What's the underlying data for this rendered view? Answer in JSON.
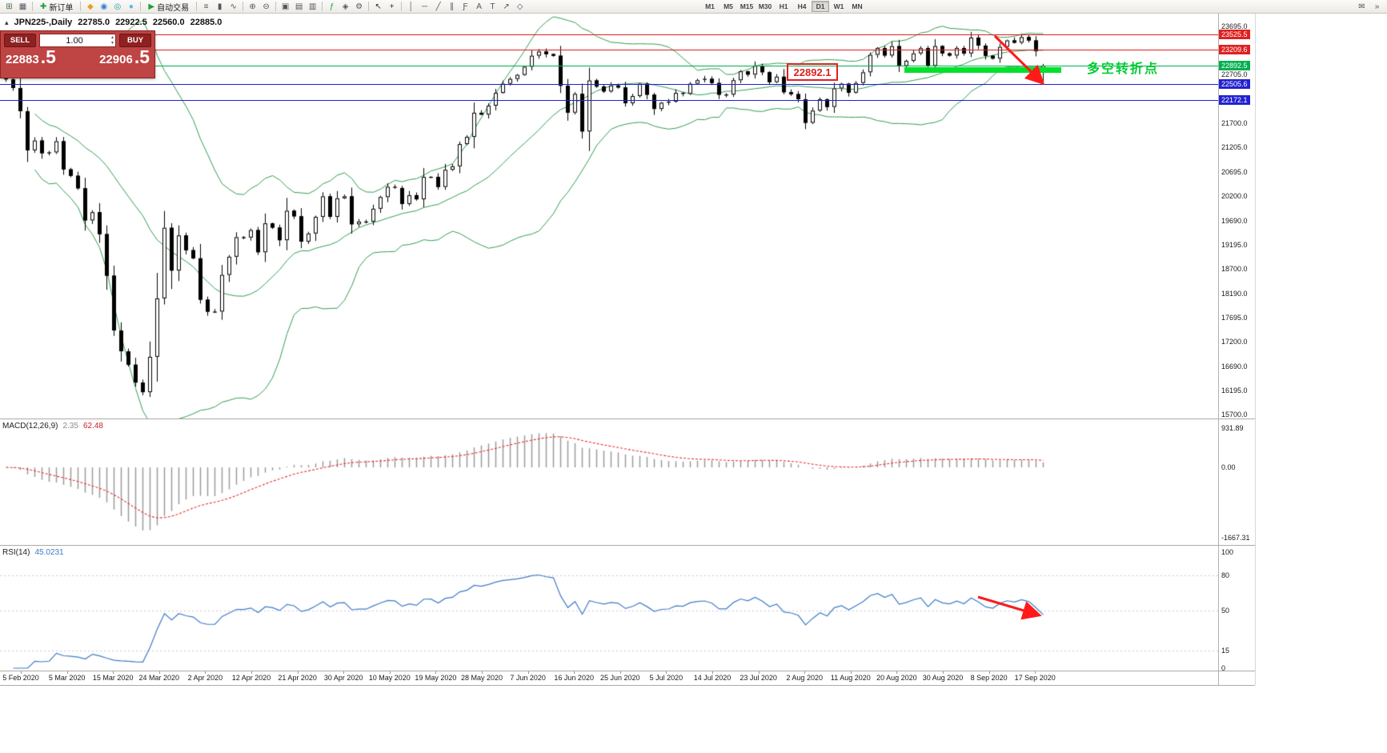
{
  "header": {
    "symbol_period": "JPN225-,Daily",
    "open": "22785.0",
    "high": "22922.5",
    "low": "22560.0",
    "close": "22885.0"
  },
  "toolbar": {
    "items": [
      {
        "name": "new-chart-icon",
        "glyph": "⊞",
        "color": "#4a6e4a"
      },
      {
        "name": "chart-profiles-icon",
        "glyph": "▦",
        "color": "#556"
      },
      {
        "sep": true
      },
      {
        "name": "new-order-button",
        "button": true,
        "glyph": "✚",
        "glyph_color": "#1aa23a",
        "label": "新订单"
      },
      {
        "sep": true
      },
      {
        "name": "market-icon",
        "glyph": "◆",
        "color": "#e2a31b"
      },
      {
        "name": "community-icon",
        "glyph": "◉",
        "color": "#2d7fd3"
      },
      {
        "name": "signals-icon",
        "glyph": "◎",
        "color": "#19a3a3"
      },
      {
        "name": "vps-icon",
        "glyph": "●",
        "color": "#58b7e3"
      },
      {
        "sep": true
      },
      {
        "name": "autotrading-button",
        "button": true,
        "glyph": "▶",
        "glyph_color": "#1aa23a",
        "label": "自动交易"
      },
      {
        "sep": true
      },
      {
        "name": "bars-chart-icon",
        "glyph": "≡",
        "color": "#555"
      },
      {
        "name": "candles-chart-icon",
        "glyph": "▮",
        "color": "#555"
      },
      {
        "name": "line-chart-icon",
        "glyph": "∿",
        "color": "#555"
      },
      {
        "sep": true
      },
      {
        "name": "zoom-in-icon",
        "glyph": "⊕",
        "color": "#555"
      },
      {
        "name": "zoom-out-icon",
        "glyph": "⊖",
        "color": "#555"
      },
      {
        "sep": true
      },
      {
        "name": "tile-windows-icon",
        "glyph": "▣",
        "color": "#555"
      },
      {
        "name": "arrange-windows-icon",
        "glyph": "▤",
        "color": "#555"
      },
      {
        "name": "cascade-windows-icon",
        "glyph": "▥",
        "color": "#555"
      },
      {
        "sep": true
      },
      {
        "name": "indicators-icon",
        "glyph": "ƒ",
        "color": "#1aa23a"
      },
      {
        "name": "objects-icon",
        "glyph": "◈",
        "color": "#555"
      },
      {
        "name": "settings-icon",
        "glyph": "⚙",
        "color": "#555"
      },
      {
        "sep": true
      },
      {
        "name": "cursor-icon",
        "glyph": "↖",
        "color": "#333"
      },
      {
        "name": "crosshair-icon",
        "glyph": "+",
        "color": "#333"
      },
      {
        "sep": true
      },
      {
        "name": "vertical-line-icon",
        "glyph": "│",
        "color": "#555"
      },
      {
        "name": "horizontal-line-icon",
        "glyph": "─",
        "color": "#555"
      },
      {
        "name": "trendline-icon",
        "glyph": "╱",
        "color": "#555"
      },
      {
        "name": "channel-icon",
        "glyph": "∥",
        "color": "#555"
      },
      {
        "name": "fibonacci-icon",
        "glyph": "Ƒ",
        "color": "#555"
      },
      {
        "name": "text-icon",
        "glyph": "A",
        "color": "#555"
      },
      {
        "name": "label-icon",
        "glyph": "T",
        "color": "#555"
      },
      {
        "name": "arrows-object-icon",
        "glyph": "↗",
        "color": "#555"
      },
      {
        "name": "shapes-icon",
        "glyph": "◇",
        "color": "#555"
      }
    ],
    "timeframes": {
      "items": [
        "M1",
        "M5",
        "M15",
        "M30",
        "H1",
        "H4",
        "D1",
        "W1",
        "MN"
      ],
      "active": "D1"
    },
    "right_items": [
      {
        "name": "messages-icon",
        "glyph": "✉",
        "color": "#555"
      },
      {
        "name": "more-tools-icon",
        "glyph": "»",
        "color": "#555"
      }
    ]
  },
  "trade_panel": {
    "sell_label": "SELL",
    "buy_label": "BUY",
    "volume": "1.00",
    "spinner_up": "▲",
    "spinner_down": "▼",
    "sell_price_main": "22883",
    "sell_price_big": ".5",
    "buy_price_main": "22906",
    "buy_price_big": ".5"
  },
  "chart": {
    "y_min": 15700,
    "y_max": 23695,
    "axis_values": [
      23695.0,
      22705.0,
      21700.0,
      21205.0,
      20695.0,
      20200.0,
      19690.0,
      19195.0,
      18700.0,
      18190.0,
      17695.0,
      17200.0,
      16690.0,
      16195.0,
      15700.0
    ],
    "levels": {
      "red": [
        23525.5,
        23209.6
      ],
      "green": [
        22892.5
      ],
      "blue": [
        22505.6,
        22172.1
      ],
      "colors": {
        "red": "#e02020",
        "green": "#00b050",
        "blue": "#2222d0"
      }
    },
    "bollinger_color": "#2f9e4e",
    "candle_bull": "#ffffff",
    "candle_bear": "#000000",
    "candle_outline": "#000000"
  },
  "macd": {
    "name": "MACD(12,26,9)",
    "value1": "2.35",
    "value2": "62.48",
    "range": [
      -1667.31,
      931.89
    ],
    "scale": [
      {
        "label": "931.89",
        "value": 931.89
      },
      {
        "label": "0.00",
        "value": 0
      },
      {
        "label": "-1667.31",
        "value": -1667.31
      }
    ],
    "histogram_color": "#9a9a9a",
    "signal_color": "#e83030"
  },
  "rsi": {
    "name": "RSI(14)",
    "value": "45.0231",
    "levels": [
      80,
      50,
      15
    ],
    "scale": [
      {
        "label": "100",
        "value": 100
      },
      {
        "label": "80",
        "value": 80
      },
      {
        "label": "50",
        "value": 50
      },
      {
        "label": "15",
        "value": 15
      },
      {
        "label": "0",
        "value": 0
      }
    ],
    "line_color": "#3e7bc8"
  },
  "annotations": {
    "price_box_text": "22892.1",
    "price_box_color": "#e02020",
    "pivot_label": "多空转折点",
    "pivot_label_color": "#00cc33",
    "highlight_color": "#00e12b",
    "arrow_color": "#ff1a1a"
  },
  "chart_data": {
    "type": "candlestick",
    "symbol": "JPN225-",
    "timeframe": "Daily",
    "title": "JPN225-,Daily 22785.0 22922.5 22560.0 22885.0",
    "price_axis": {
      "min": 15700,
      "max": 23695
    },
    "x_axis_dates": [
      "5 Feb 2020",
      "5 Mar 2020",
      "15 Mar 2020",
      "24 Mar 2020",
      "2 Apr 2020",
      "12 Apr 2020",
      "21 Apr 2020",
      "30 Apr 2020",
      "10 May 2020",
      "19 May 2020",
      "28 May 2020",
      "7 Jun 2020",
      "16 Jun 2020",
      "25 Jun 2020",
      "5 Jul 2020",
      "14 Jul 2020",
      "23 Jul 2020",
      "2 Aug 2020",
      "11 Aug 2020",
      "20 Aug 2020",
      "30 Aug 2020",
      "8 Sep 2020",
      "17 Sep 2020"
    ],
    "first_open": 22781,
    "closes": [
      22605,
      22426,
      21948,
      21143,
      21344,
      21083,
      21100,
      21329,
      20750,
      20618,
      20360,
      19699,
      19867,
      19416,
      18560,
      17431,
      17002,
      16726,
      16358,
      16160,
      16888,
      18092,
      19546,
      18665,
      19389,
      19085,
      18917,
      18065,
      17819,
      17820,
      18576,
      18950,
      19353,
      19346,
      19499,
      19043,
      19638,
      19550,
      19291,
      19897,
      19783,
      19262,
      19429,
      19771,
      20194,
      19772,
      20154,
      20194,
      19619,
      19675,
      19674,
      19939,
      20179,
      20391,
      20366,
      20037,
      20218,
      20133,
      20595,
      20596,
      20388,
      20741,
      20813,
      21271,
      21419,
      21916,
      21878,
      22062,
      22325,
      22514,
      22613,
      22696,
      22864,
      23091,
      23178,
      23124,
      23091,
      22472,
      21919,
      22305,
      21531,
      22582,
      22456,
      22355,
      22479,
      22437,
      22112,
      22260,
      22512,
      22288,
      21995,
      22122,
      22145,
      22325,
      22306,
      22514,
      22587,
      22615,
      22529,
      22288,
      22291,
      22587,
      22770,
      22702,
      22884,
      22751,
      22548,
      22659,
      22339,
      22300,
      22195,
      21710,
      21960,
      22195,
      22036,
      22418,
      22514,
      22330,
      22530,
      22750,
      23110,
      23249,
      23096,
      23289,
      22880,
      22985,
      23139,
      23247,
      22882,
      23290,
      23140,
      23095,
      23250,
      23138,
      23465,
      23300,
      23090,
      23032,
      23274,
      23406,
      23360,
      23475,
      23406,
      23185,
      22885
    ],
    "last_ohlc": [
      22785.0,
      22922.5,
      22560.0,
      22885.0
    ],
    "horizontal_levels": {
      "resistance": [
        23525.5,
        23209.6
      ],
      "pivot": 22892.5,
      "support": [
        22505.6,
        22172.1
      ]
    },
    "indicators": [
      {
        "name": "Bollinger Bands",
        "period": 20,
        "deviation": 2
      },
      {
        "name": "MACD",
        "params": [
          12,
          26,
          9
        ],
        "last_values": [
          2.35,
          62.48
        ],
        "range": [
          -1667.31,
          931.89
        ]
      },
      {
        "name": "RSI",
        "period": 14,
        "last_value": 45.0231,
        "range": [
          0,
          100
        ]
      }
    ]
  }
}
